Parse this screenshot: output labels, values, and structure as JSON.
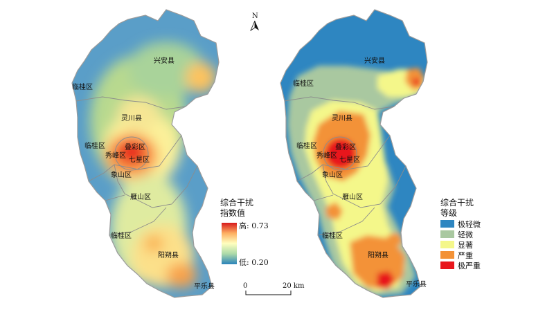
{
  "north_label": "N",
  "left_map": {
    "labels": {
      "xingan": "兴安县",
      "lingui_top": "临桂区",
      "lingchuan": "灵川县",
      "lingui_mid": "临桂区",
      "diecai": "叠彩区",
      "xiufeng": "秀峰区",
      "qixing": "七星区",
      "xiangshan": "象山区",
      "yanshan": "雁山区",
      "lingui_bottom": "临桂区",
      "yangshuo": "阳朔县",
      "pingle": "平乐县"
    },
    "legend": {
      "title_line1": "综合干扰",
      "title_line2": "指数值",
      "high": "高: 0.73",
      "low": "低: 0.20",
      "high_value": 0.73,
      "low_value": 0.2,
      "gradient_colors": [
        "#d7191c",
        "#fdae61",
        "#ffffbf",
        "#abd9a9",
        "#2b83ba"
      ]
    },
    "scale": {
      "zero": "0",
      "max": "20 km"
    }
  },
  "right_map": {
    "labels": {
      "xingan": "兴安县",
      "lingui_top": "临桂区",
      "lingchuan": "灵川县",
      "lingui_mid": "临桂区",
      "diecai": "叠彩区",
      "xiufeng": "秀峰区",
      "qixing": "七星区",
      "xiangshan": "象山区",
      "yanshan": "雁山区",
      "lingui_bottom": "临桂区",
      "yangshuo": "阳朔县",
      "pingle": "平乐县"
    },
    "legend": {
      "title_line1": "综合干扰",
      "title_line2": "等级",
      "classes": [
        {
          "label": "极轻微",
          "color": "#2e86c1"
        },
        {
          "label": "轻微",
          "color": "#a9c8a0"
        },
        {
          "label": "显著",
          "color": "#f4f78a"
        },
        {
          "label": "严重",
          "color": "#f39237"
        },
        {
          "label": "极严重",
          "color": "#e8161c"
        }
      ]
    }
  }
}
